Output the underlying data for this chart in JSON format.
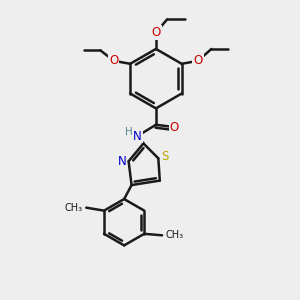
{
  "background_color": "#eeeeee",
  "bond_color": "#1a1a1a",
  "bond_width": 1.8,
  "atom_colors": {
    "O": "#cc0000",
    "N": "#0000cc",
    "S": "#bbaa00",
    "H": "#558888",
    "C": "#1a1a1a"
  },
  "font_size": 8.5,
  "figsize": [
    3.0,
    3.0
  ],
  "dpi": 100
}
